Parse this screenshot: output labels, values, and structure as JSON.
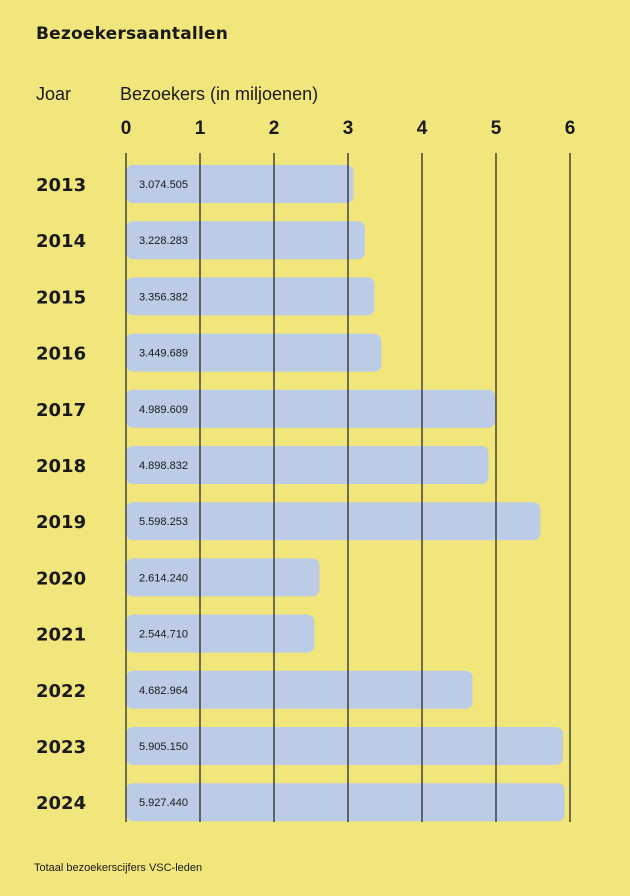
{
  "header": {
    "title": "Bezoekersaantallen",
    "year_column": "Joar",
    "value_column": "Bezoekers (in miljoenen)"
  },
  "footer": {
    "note": "Totaal bezoekerscijfers VSC-leden"
  },
  "colors": {
    "background": "#f1e67c",
    "bar": "#bccbe6",
    "text": "#1a1a1a"
  },
  "chart_data": {
    "type": "bar",
    "orientation": "horizontal",
    "title": "Bezoekersaantallen",
    "xlabel": "Bezoekers (in miljoenen)",
    "ylabel": "Joar",
    "xlim": [
      0,
      6
    ],
    "x_ticks": [
      "0",
      "1",
      "2",
      "3",
      "4",
      "5",
      "6"
    ],
    "grid": "vertical",
    "categories": [
      "2013",
      "2014",
      "2015",
      "2016",
      "2017",
      "2018",
      "2019",
      "2020",
      "2021",
      "2022",
      "2023",
      "2024"
    ],
    "values": [
      3.074505,
      3.228283,
      3.356382,
      3.449689,
      4.989609,
      4.898832,
      5.598253,
      2.61424,
      2.54471,
      4.682964,
      5.90515,
      5.92744
    ],
    "data_labels": [
      "3.074.505",
      "3.228.283",
      "3.356.382",
      "3.449.689",
      "4.989.609",
      "4.898.832",
      "5.598.253",
      "2.614.240",
      "2.544.710",
      "4.682.964",
      "5.905.150",
      "5.927.440"
    ]
  }
}
